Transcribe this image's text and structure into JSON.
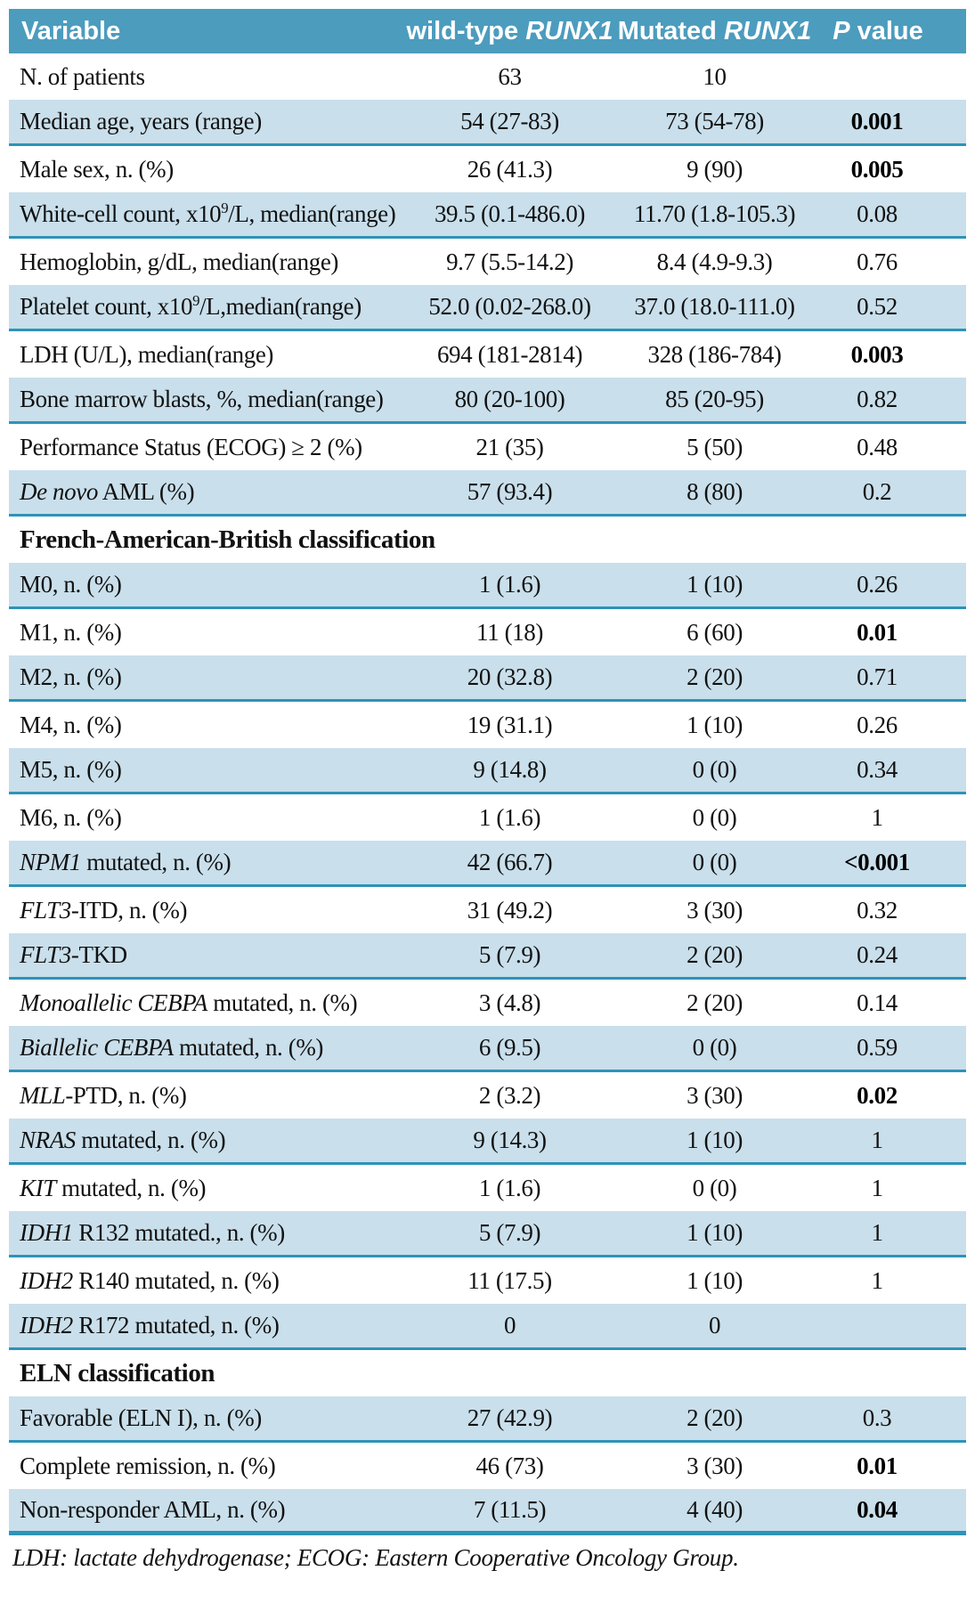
{
  "colors": {
    "header_bg": "#4C9CBE",
    "header_text": "#FFFFFF",
    "row_blue_bg": "#C9DFEB",
    "row_white_bg": "#FFFFFF",
    "separator_teal": "#2E93B8",
    "body_text": "#111111"
  },
  "header": {
    "col1": "Variable",
    "col2_prefix": "wild-type ",
    "col2_gene": "RUNX1",
    "col3_prefix": "Mutated ",
    "col3_gene": "RUNX1",
    "col4_italic": "P",
    "col4_rest": " value"
  },
  "table": {
    "rows": [
      {
        "type": "data",
        "shade": "white",
        "label": [
          {
            "t": "N. of patients"
          }
        ],
        "wt": "63",
        "mut": "10",
        "p": "",
        "p_bold": false
      },
      {
        "type": "data",
        "shade": "blue",
        "label": [
          {
            "t": "Median age, years (range)"
          }
        ],
        "wt": "54 (27-83)",
        "mut": "73 (54-78)",
        "p": "0.001",
        "p_bold": true
      },
      {
        "type": "data",
        "shade": "white",
        "label": [
          {
            "t": "Male sex, n. (%)"
          }
        ],
        "wt": "26 (41.3)",
        "mut": "9 (90)",
        "p": "0.005",
        "p_bold": true
      },
      {
        "type": "data",
        "shade": "blue",
        "label": [
          {
            "t": "White-cell count, x10"
          },
          {
            "t": "9",
            "sup": true
          },
          {
            "t": "/L, median(range)"
          }
        ],
        "wt": "39.5 (0.1-486.0)",
        "mut": "11.70 (1.8-105.3)",
        "p": "0.08",
        "p_bold": false
      },
      {
        "type": "data",
        "shade": "white",
        "label": [
          {
            "t": "Hemoglobin, g/dL, median(range)"
          }
        ],
        "wt": "9.7 (5.5-14.2)",
        "mut": "8.4 (4.9-9.3)",
        "p": "0.76",
        "p_bold": false
      },
      {
        "type": "data",
        "shade": "blue",
        "label": [
          {
            "t": "Platelet count,  x10"
          },
          {
            "t": "9",
            "sup": true
          },
          {
            "t": "/L,median(range)"
          }
        ],
        "wt": "52.0 (0.02-268.0)",
        "mut": "37.0 (18.0-111.0)",
        "p": "0.52",
        "p_bold": false
      },
      {
        "type": "data",
        "shade": "white",
        "label": [
          {
            "t": "LDH (U/L), median(range)"
          }
        ],
        "wt": "694 (181-2814)",
        "mut": "328 (186-784)",
        "p": "0.003",
        "p_bold": true
      },
      {
        "type": "data",
        "shade": "blue",
        "label": [
          {
            "t": "Bone marrow blasts, %, median(range)"
          }
        ],
        "wt": "80 (20-100)",
        "mut": "85 (20-95)",
        "p": "0.82",
        "p_bold": false
      },
      {
        "type": "data",
        "shade": "white",
        "label": [
          {
            "t": "Performance Status (ECOG) ≥ 2 (%)"
          }
        ],
        "wt": "21 (35)",
        "mut": "5 (50)",
        "p": "0.48",
        "p_bold": false
      },
      {
        "type": "data",
        "shade": "blue",
        "label": [
          {
            "t": "De novo",
            "i": true
          },
          {
            "t": " AML (%)"
          }
        ],
        "wt": "57 (93.4)",
        "mut": "8 (80)",
        "p": "0.2",
        "p_bold": false
      },
      {
        "type": "section",
        "label": "French-American-British classification"
      },
      {
        "type": "data",
        "shade": "blue",
        "label": [
          {
            "t": "M0, n. (%)"
          }
        ],
        "wt": "1 (1.6)",
        "mut": "1 (10)",
        "p": "0.26",
        "p_bold": false
      },
      {
        "type": "data",
        "shade": "white",
        "label": [
          {
            "t": "M1, n. (%)"
          }
        ],
        "wt": "11 (18)",
        "mut": "6 (60)",
        "p": "0.01",
        "p_bold": true
      },
      {
        "type": "data",
        "shade": "blue",
        "label": [
          {
            "t": "M2, n. (%)"
          }
        ],
        "wt": "20 (32.8)",
        "mut": "2 (20)",
        "p": "0.71",
        "p_bold": false
      },
      {
        "type": "data",
        "shade": "white",
        "label": [
          {
            "t": "M4, n. (%)"
          }
        ],
        "wt": "19 (31.1)",
        "mut": "1 (10)",
        "p": "0.26",
        "p_bold": false
      },
      {
        "type": "data",
        "shade": "blue",
        "label": [
          {
            "t": "M5, n. (%)"
          }
        ],
        "wt": "9 (14.8)",
        "mut": "0 (0)",
        "p": "0.34",
        "p_bold": false
      },
      {
        "type": "data",
        "shade": "white",
        "label": [
          {
            "t": "M6, n. (%)"
          }
        ],
        "wt": "1 (1.6)",
        "mut": "0 (0)",
        "p": "1",
        "p_bold": false
      },
      {
        "type": "data",
        "shade": "blue",
        "label": [
          {
            "t": "NPM1",
            "i": true
          },
          {
            "t": " mutated, n. (%)"
          }
        ],
        "wt": "42 (66.7)",
        "mut": "0 (0)",
        "p": "<0.001",
        "p_bold": true
      },
      {
        "type": "data",
        "shade": "white",
        "label": [
          {
            "t": "FLT3",
            "i": true
          },
          {
            "t": "-ITD, n. (%)"
          }
        ],
        "wt": "31 (49.2)",
        "mut": "3 (30)",
        "p": "0.32",
        "p_bold": false
      },
      {
        "type": "data",
        "shade": "blue",
        "label": [
          {
            "t": "FLT3",
            "i": true
          },
          {
            "t": "-TKD"
          }
        ],
        "wt": "5 (7.9)",
        "mut": "2 (20)",
        "p": "0.24",
        "p_bold": false
      },
      {
        "type": "data",
        "shade": "white",
        "label": [
          {
            "t": "Monoallelic CEBPA",
            "i": true
          },
          {
            "t": " mutated, n. (%)"
          }
        ],
        "wt": "3 (4.8)",
        "mut": "2 (20)",
        "p": "0.14",
        "p_bold": false
      },
      {
        "type": "data",
        "shade": "blue",
        "label": [
          {
            "t": "Biallelic CEBPA",
            "i": true
          },
          {
            "t": " mutated, n. (%)"
          }
        ],
        "wt": "6 (9.5)",
        "mut": "0 (0)",
        "p": "0.59",
        "p_bold": false
      },
      {
        "type": "data",
        "shade": "white",
        "label": [
          {
            "t": "MLL",
            "i": true
          },
          {
            "t": "-PTD, n. (%)"
          }
        ],
        "wt": "2 (3.2)",
        "mut": "3 (30)",
        "p": "0.02",
        "p_bold": true
      },
      {
        "type": "data",
        "shade": "blue",
        "label": [
          {
            "t": "NRAS",
            "i": true
          },
          {
            "t": " mutated, n. (%)"
          }
        ],
        "wt": "9 (14.3)",
        "mut": "1 (10)",
        "p": "1",
        "p_bold": false
      },
      {
        "type": "data",
        "shade": "white",
        "label": [
          {
            "t": "KIT",
            "i": true
          },
          {
            "t": " mutated, n. (%)"
          }
        ],
        "wt": "1 (1.6)",
        "mut": "0 (0)",
        "p": "1",
        "p_bold": false
      },
      {
        "type": "data",
        "shade": "blue",
        "label": [
          {
            "t": "IDH1",
            "i": true
          },
          {
            "t": " R132 mutated., n. (%)"
          }
        ],
        "wt": "5 (7.9)",
        "mut": "1 (10)",
        "p": "1",
        "p_bold": false
      },
      {
        "type": "data",
        "shade": "white",
        "label": [
          {
            "t": "IDH2",
            "i": true
          },
          {
            "t": " R140 mutated, n. (%)"
          }
        ],
        "wt": "11 (17.5)",
        "mut": "1 (10)",
        "p": "1",
        "p_bold": false
      },
      {
        "type": "data",
        "shade": "blue",
        "label": [
          {
            "t": "IDH2",
            "i": true
          },
          {
            "t": " R172 mutated, n. (%)"
          }
        ],
        "wt": "0",
        "mut": "0",
        "p": "",
        "p_bold": false
      },
      {
        "type": "section",
        "label": "ELN classification"
      },
      {
        "type": "data",
        "shade": "blue",
        "label": [
          {
            "t": "Favorable (ELN I), n. (%)"
          }
        ],
        "wt": "27 (42.9)",
        "mut": "2 (20)",
        "p": "0.3",
        "p_bold": false
      },
      {
        "type": "data",
        "shade": "white",
        "label": [
          {
            "t": "Complete remission, n. (%)"
          }
        ],
        "wt": "46 (73)",
        "mut": "3 (30)",
        "p": "0.01",
        "p_bold": true
      },
      {
        "type": "data",
        "shade": "blue",
        "label": [
          {
            "t": "Non-responder AML, n. (%)"
          }
        ],
        "wt": "7 (11.5)",
        "mut": "4 (40)",
        "p": "0.04",
        "p_bold": true
      }
    ],
    "footnote": "LDH: lactate dehydrogenase; ECOG: Eastern Cooperative Oncology Group."
  }
}
